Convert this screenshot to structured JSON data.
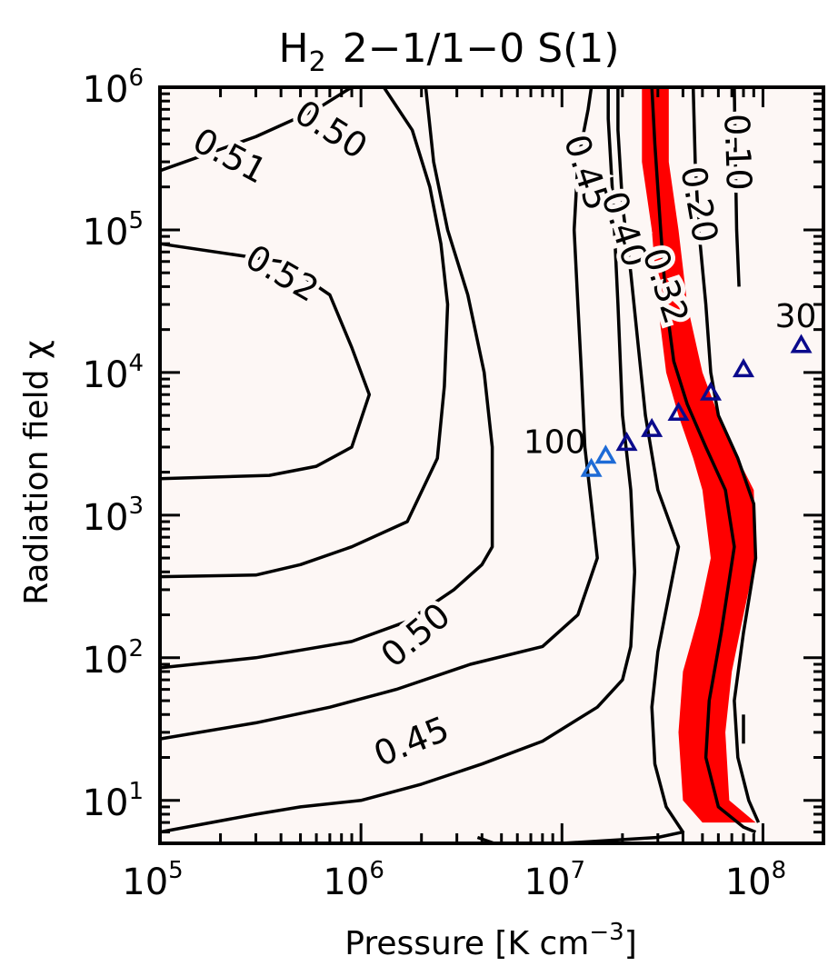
{
  "chart_data": {
    "type": "contour",
    "title": {
      "main": "H",
      "sub": "2",
      "rest": "2−1/1−0 S(1)"
    },
    "xlabel": {
      "main": "Pressure [K cm",
      "sup": "−3",
      "tail": "]"
    },
    "ylabel": {
      "main": "Radiation field χ"
    },
    "xscale": "log",
    "yscale": "log",
    "xlim": [
      100000,
      200000000
    ],
    "ylim": [
      5,
      1000000
    ],
    "xticks": [
      {
        "value": 100000,
        "base": "10",
        "exp": "5"
      },
      {
        "value": 1000000,
        "base": "10",
        "exp": "6"
      },
      {
        "value": 10000000,
        "base": "10",
        "exp": "7"
      },
      {
        "value": 100000000,
        "base": "10",
        "exp": "8"
      }
    ],
    "yticks": [
      {
        "value": 10,
        "base": "10",
        "exp": "1"
      },
      {
        "value": 100,
        "base": "10",
        "exp": "2"
      },
      {
        "value": 1000,
        "base": "10",
        "exp": "3"
      },
      {
        "value": 10000,
        "base": "10",
        "exp": "4"
      },
      {
        "value": 100000,
        "base": "10",
        "exp": "5"
      },
      {
        "value": 1000000,
        "base": "10",
        "exp": "6"
      }
    ],
    "background_color": "#fdf7f5",
    "highlight_color": "#ff0000",
    "marker_colors": {
      "light": "#1e6bd6",
      "dark": "#0a0a8c"
    },
    "highlight_band": {
      "left": [
        [
          25000000,
          1000000
        ],
        [
          25000000,
          300000
        ],
        [
          28000000,
          100000
        ],
        [
          30000000,
          30000
        ],
        [
          33000000,
          10000
        ],
        [
          38000000,
          5000
        ],
        [
          45000000,
          2500
        ],
        [
          50000000,
          1500
        ],
        [
          55000000,
          500
        ],
        [
          48000000,
          200
        ],
        [
          40000000,
          80
        ],
        [
          38000000,
          30
        ],
        [
          40000000,
          10
        ],
        [
          50000000,
          7
        ]
      ],
      "right": [
        [
          34000000,
          1000000
        ],
        [
          34000000,
          300000
        ],
        [
          38000000,
          100000
        ],
        [
          42000000,
          30000
        ],
        [
          50000000,
          10000
        ],
        [
          60000000,
          5000
        ],
        [
          75000000,
          2500
        ],
        [
          90000000,
          1500
        ],
        [
          92000000,
          500
        ],
        [
          80000000,
          200
        ],
        [
          70000000,
          80
        ],
        [
          65000000,
          30
        ],
        [
          68000000,
          10
        ],
        [
          92000000,
          7
        ]
      ]
    },
    "contours": [
      {
        "level": "0.50",
        "points": [
          [
            100000,
            1000000
          ],
          [
            1500000,
            1000000
          ]
        ]
      },
      {
        "level": "0.51",
        "points": [
          [
            100000,
            260000
          ],
          [
            300000,
            450000
          ],
          [
            600000,
            700000
          ],
          [
            900000,
            1000000
          ]
        ]
      },
      {
        "level": "0.52",
        "points": [
          [
            100000,
            80000
          ],
          [
            400000,
            60000
          ],
          [
            700000,
            35000
          ],
          [
            900000,
            15000
          ],
          [
            1100000,
            7000
          ],
          [
            900000,
            3000
          ],
          [
            600000,
            2200
          ],
          [
            350000,
            1900
          ],
          [
            100000,
            1800
          ]
        ]
      },
      {
        "level": "0.50",
        "points": [
          [
            1300000,
            1000000
          ],
          [
            1800000,
            500000
          ],
          [
            2200000,
            200000
          ],
          [
            2500000,
            80000
          ],
          [
            2700000,
            30000
          ],
          [
            2600000,
            8000
          ],
          [
            2400000,
            2500
          ],
          [
            1700000,
            900
          ],
          [
            900000,
            600
          ],
          [
            500000,
            450
          ],
          [
            300000,
            380
          ],
          [
            100000,
            370
          ]
        ]
      },
      {
        "level": "0.50",
        "points": [
          [
            100000,
            85
          ],
          [
            300000,
            100
          ],
          [
            900000,
            130
          ],
          [
            1700000,
            180
          ],
          [
            2900000,
            300
          ],
          [
            4000000,
            450
          ],
          [
            4500000,
            600
          ],
          [
            4500000,
            3000
          ],
          [
            4100000,
            10000
          ],
          [
            3400000,
            35000
          ],
          [
            2700000,
            100000
          ],
          [
            2300000,
            300000
          ],
          [
            2100000,
            1000000
          ]
        ]
      },
      {
        "level": "0.45",
        "points": [
          [
            100000,
            27
          ],
          [
            300000,
            35
          ],
          [
            700000,
            45
          ],
          [
            1500000,
            60
          ],
          [
            3500000,
            90
          ],
          [
            8000000,
            120
          ],
          [
            12000000,
            200
          ],
          [
            15000000,
            500
          ],
          [
            14000000,
            1200
          ],
          [
            13000000,
            3000
          ],
          [
            12500000,
            10000
          ],
          [
            12000000,
            30000
          ],
          [
            11500000,
            100000
          ],
          [
            12000000,
            300000
          ],
          [
            13500000,
            700000
          ],
          [
            14000000,
            1000000
          ]
        ]
      },
      {
        "level": "0.45",
        "points": [
          [
            100000,
            6
          ],
          [
            300000,
            8
          ],
          [
            500000,
            9
          ],
          [
            1000000,
            10
          ],
          [
            2000000,
            13
          ],
          [
            4000000,
            18
          ],
          [
            8000000,
            26
          ],
          [
            15000000,
            45
          ],
          [
            20000000,
            70
          ],
          [
            22000000,
            120
          ],
          [
            23000000,
            400
          ],
          [
            22000000,
            1500
          ],
          [
            20000000,
            5000
          ],
          [
            19000000,
            30000
          ],
          [
            18000000,
            150000
          ],
          [
            17000000,
            600000
          ],
          [
            17000000,
            1000000
          ]
        ]
      },
      {
        "level": "0.40",
        "points": [
          [
            3800000,
            5.5
          ],
          [
            4600000,
            5
          ],
          [
            10000000,
            5
          ],
          [
            30000000,
            5.5
          ],
          [
            40000000,
            6
          ],
          [
            33000000,
            9
          ],
          [
            29000000,
            18
          ],
          [
            28000000,
            45
          ],
          [
            30000000,
            110
          ],
          [
            38000000,
            600
          ],
          [
            30000000,
            1500
          ],
          [
            26000000,
            5000
          ],
          [
            24000000,
            15000
          ],
          [
            22000000,
            50000
          ],
          [
            20000000,
            150000
          ],
          [
            19000000,
            500000
          ],
          [
            19000000,
            1000000
          ]
        ]
      },
      {
        "level": "0.32",
        "points": [
          [
            92000000,
            6
          ],
          [
            80000000,
            6.5
          ],
          [
            60000000,
            9
          ],
          [
            52000000,
            20
          ],
          [
            54000000,
            50
          ],
          [
            62000000,
            150
          ],
          [
            72000000,
            600
          ],
          [
            65000000,
            1500
          ],
          [
            52000000,
            3000
          ],
          [
            42000000,
            6000
          ],
          [
            36000000,
            12000
          ],
          [
            33000000,
            30000
          ],
          [
            31000000,
            100000
          ],
          [
            29000000,
            400000
          ],
          [
            28000000,
            1000000
          ]
        ]
      },
      {
        "level": "0.20",
        "points": [
          [
            95000000,
            7
          ],
          [
            85000000,
            10
          ],
          [
            75000000,
            20
          ],
          [
            72000000,
            50
          ],
          [
            80000000,
            150
          ],
          [
            92000000,
            500
          ],
          [
            90000000,
            1200
          ],
          [
            75000000,
            2500
          ],
          [
            60000000,
            5000
          ],
          [
            55000000,
            10000
          ],
          [
            52000000,
            30000
          ],
          [
            48000000,
            100000
          ],
          [
            46000000,
            300000
          ],
          [
            45000000,
            1000000
          ]
        ]
      },
      {
        "level": "0.10",
        "points": [
          [
            80000000,
            25
          ],
          [
            80000000,
            40
          ]
        ]
      },
      {
        "level": "0.10",
        "points": [
          [
            72000000,
            1000000
          ],
          [
            73000000,
            300000
          ],
          [
            74000000,
            100000
          ],
          [
            76000000,
            40000
          ]
        ]
      }
    ],
    "contour_labels": [
      {
        "text": "0.50",
        "x": 700000,
        "y": 490000,
        "angle": 32
      },
      {
        "text": "0.51",
        "x": 220000,
        "y": 320000,
        "angle": 28
      },
      {
        "text": "0.52",
        "x": 400000,
        "y": 48000,
        "angle": 30
      },
      {
        "text": "0.50",
        "x": 1900000,
        "y": 140,
        "angle": -40
      },
      {
        "text": "0.45",
        "x": 1800000,
        "y": 25,
        "angle": -22
      },
      {
        "text": "0.45",
        "x": 13000000,
        "y": 250000,
        "angle": 72
      },
      {
        "text": "0.40",
        "x": 20000000,
        "y": 100000,
        "angle": 72
      },
      {
        "text": "0.32",
        "x": 32000000,
        "y": 40000,
        "angle": 72
      },
      {
        "text": "0.20",
        "x": 47000000,
        "y": 150000,
        "angle": 80
      },
      {
        "text": "0.10",
        "x": 73000000,
        "y": 350000,
        "angle": 88
      }
    ],
    "series": [
      {
        "name": "100",
        "color": "#1e6bd6",
        "points": [
          [
            14000000,
            2100
          ],
          [
            16500000,
            2600
          ]
        ]
      },
      {
        "name": "30",
        "color": "#0a0a8c",
        "points": [
          [
            21000000,
            3200
          ],
          [
            28000000,
            4000
          ],
          [
            38000000,
            5200
          ],
          [
            55000000,
            7200
          ],
          [
            80000000,
            10500
          ],
          [
            155000000,
            15500
          ]
        ]
      }
    ]
  }
}
